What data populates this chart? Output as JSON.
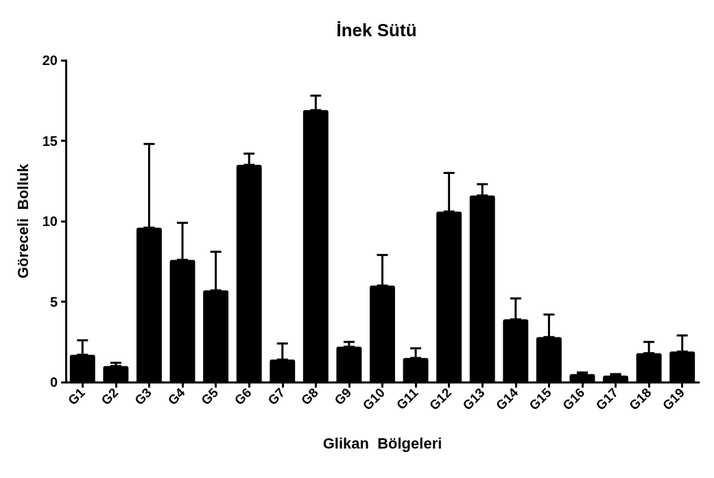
{
  "chart_data": {
    "type": "bar",
    "title": "İnek Sütü",
    "xlabel": "Glikan  Bölgeleri",
    "ylabel": "Göreceli  Bolluk",
    "categories": [
      "G1",
      "G2",
      "G3",
      "G4",
      "G5",
      "G6",
      "G7",
      "G8",
      "G9",
      "G10",
      "G11",
      "G12",
      "G13",
      "G14",
      "G15",
      "G16",
      "G17",
      "G18",
      "G19"
    ],
    "values": [
      1.7,
      1.0,
      9.6,
      7.6,
      5.7,
      13.5,
      1.4,
      16.9,
      2.2,
      6.0,
      1.5,
      10.6,
      11.6,
      3.9,
      2.8,
      0.5,
      0.4,
      1.8,
      1.9
    ],
    "errors": [
      [
        1.7,
        2.6
      ],
      [
        1.0,
        1.2
      ],
      [
        9.6,
        14.8
      ],
      [
        7.6,
        9.9
      ],
      [
        5.7,
        8.1
      ],
      [
        13.5,
        14.2
      ],
      [
        1.4,
        2.4
      ],
      [
        16.9,
        17.8
      ],
      [
        2.2,
        2.5
      ],
      [
        6.0,
        7.9
      ],
      [
        1.5,
        2.1
      ],
      [
        10.6,
        13.0
      ],
      [
        11.6,
        12.3
      ],
      [
        3.9,
        5.2
      ],
      [
        2.8,
        4.2
      ],
      [
        0.5,
        0.6
      ],
      [
        0.4,
        0.5
      ],
      [
        1.8,
        2.5
      ],
      [
        1.9,
        2.9
      ]
    ],
    "color": "#000000",
    "ylim": [
      0,
      20
    ],
    "yticks": [
      0,
      5,
      10,
      15,
      20
    ],
    "grid": false
  }
}
